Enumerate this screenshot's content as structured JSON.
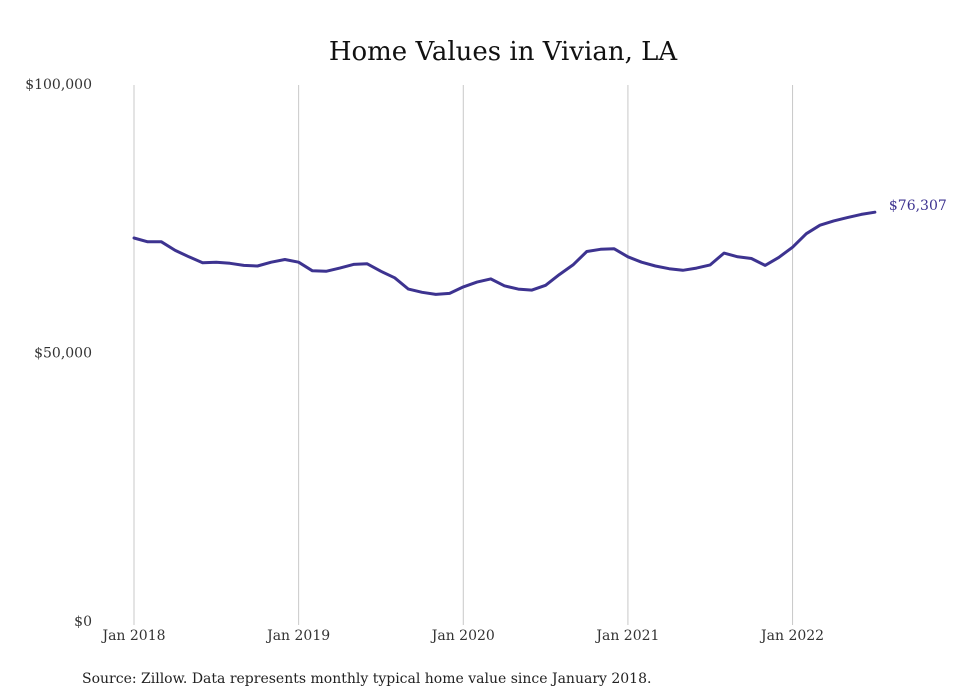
{
  "chart_data": {
    "type": "line",
    "title": "Home Values in Vivian, LA",
    "source": "Source: Zillow. Data represents monthly typical home value since January 2018.",
    "ylim": [
      0,
      100000
    ],
    "y_ticks": [
      {
        "value": 0,
        "label": "$0"
      },
      {
        "value": 50000,
        "label": "$50,000"
      },
      {
        "value": 100000,
        "label": "$100,000"
      }
    ],
    "x_ticks": [
      {
        "month_index": 0,
        "label": "Jan 2018"
      },
      {
        "month_index": 12,
        "label": "Jan 2019"
      },
      {
        "month_index": 24,
        "label": "Jan 2020"
      },
      {
        "month_index": 36,
        "label": "Jan 2021"
      },
      {
        "month_index": 48,
        "label": "Jan 2022"
      }
    ],
    "x_grid": true,
    "y_grid": false,
    "line_color": "#3d3390",
    "end_label": "$76,307",
    "series": [
      {
        "values": [
          71500,
          70800,
          70800,
          69200,
          68000,
          66900,
          67000,
          66800,
          66400,
          66300,
          67000,
          67500,
          67000,
          65400,
          65300,
          65900,
          66600,
          66700,
          65300,
          64100,
          62000,
          61400,
          61000,
          61200,
          62400,
          63300,
          63900,
          62600,
          62000,
          61800,
          62700,
          64700,
          66500,
          69000,
          69400,
          69500,
          68000,
          67000,
          66300,
          65800,
          65500,
          65900,
          66500,
          68700,
          68000,
          67700,
          66400,
          67900,
          69800,
          72300,
          73900,
          74700,
          75300,
          75900,
          76307
        ]
      }
    ]
  }
}
